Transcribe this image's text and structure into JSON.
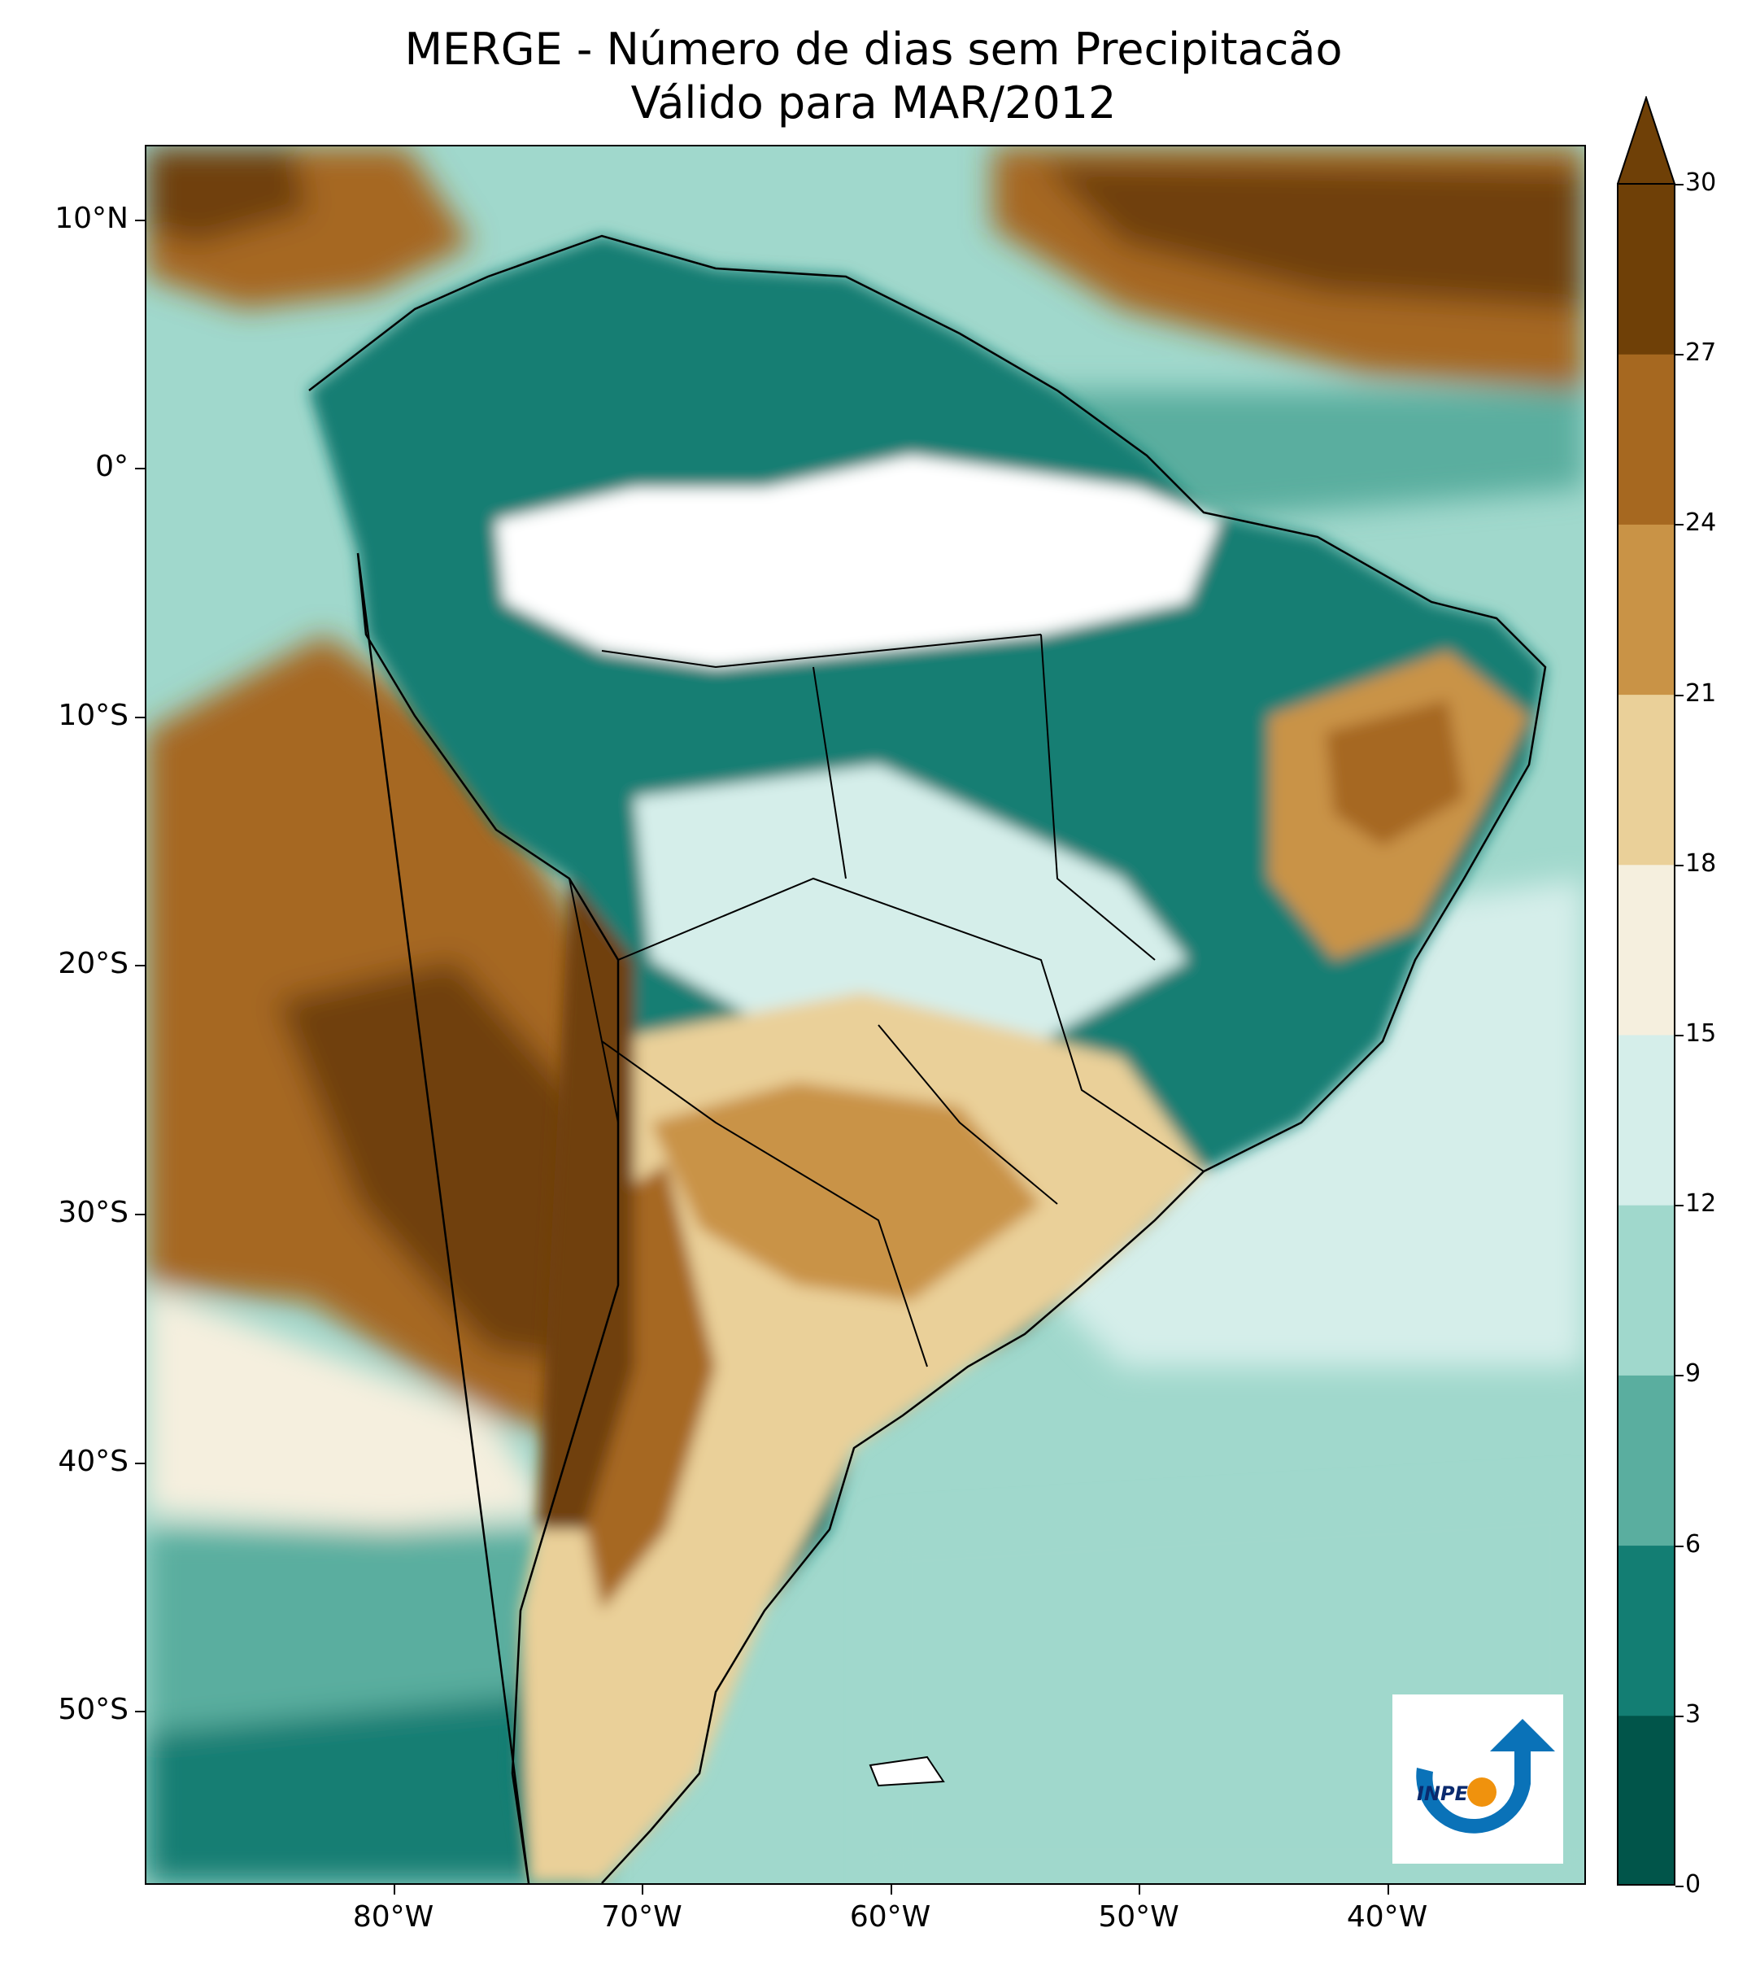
{
  "title": {
    "line1": "MERGE - Número de dias sem Precipitacão",
    "line2": "Válido para MAR/2012"
  },
  "map": {
    "lon_range": [
      -90,
      -32
    ],
    "lat_range": [
      -57,
      13
    ],
    "lat_ticks": [
      "10°N",
      "0°",
      "10°S",
      "20°S",
      "30°S",
      "40°S",
      "50°S"
    ],
    "lat_values": [
      10,
      0,
      -10,
      -20,
      -30,
      -40,
      -50
    ],
    "lon_ticks": [
      "80°W",
      "70°W",
      "60°W",
      "50°W",
      "40°W"
    ],
    "lon_values": [
      -80,
      -70,
      -60,
      -50,
      -40
    ]
  },
  "colorbar": {
    "levels": [
      0,
      3,
      6,
      9,
      12,
      15,
      18,
      21,
      24,
      27,
      30
    ],
    "labels": [
      "0",
      "3",
      "6",
      "9",
      "12",
      "15",
      "18",
      "21",
      "24",
      "27",
      "30"
    ],
    "colors": [
      "#01554a",
      "#137e73",
      "#5aae9f",
      "#a0d8cc",
      "#d5eeea",
      "#f5efde",
      "#ead099",
      "#c99346",
      "#a66820",
      "#6f4007"
    ],
    "extend": "max"
  },
  "logo": {
    "text": "INPE",
    "colors": {
      "arrow": "#0a72b8",
      "sun": "#f0920d"
    }
  }
}
